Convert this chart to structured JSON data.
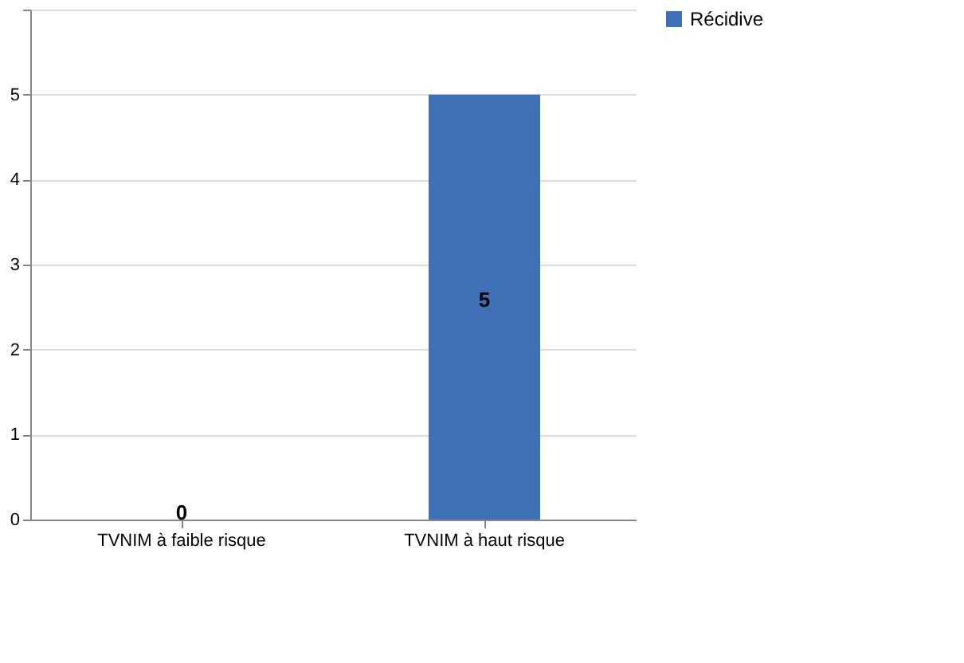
{
  "chart_data": {
    "type": "bar",
    "categories": [
      "TVNIM à faible risque",
      "TVNIM à haut risque"
    ],
    "series": [
      {
        "name": "Récidive",
        "color": "#3f6fb5",
        "values": [
          0,
          5
        ]
      }
    ],
    "ylim": [
      0,
      6
    ],
    "yticks": [
      0,
      1,
      2,
      3,
      4,
      5,
      {
        "value": 6,
        "label": null
      }
    ],
    "grid": "y",
    "legend": "right",
    "data_labels": true
  }
}
